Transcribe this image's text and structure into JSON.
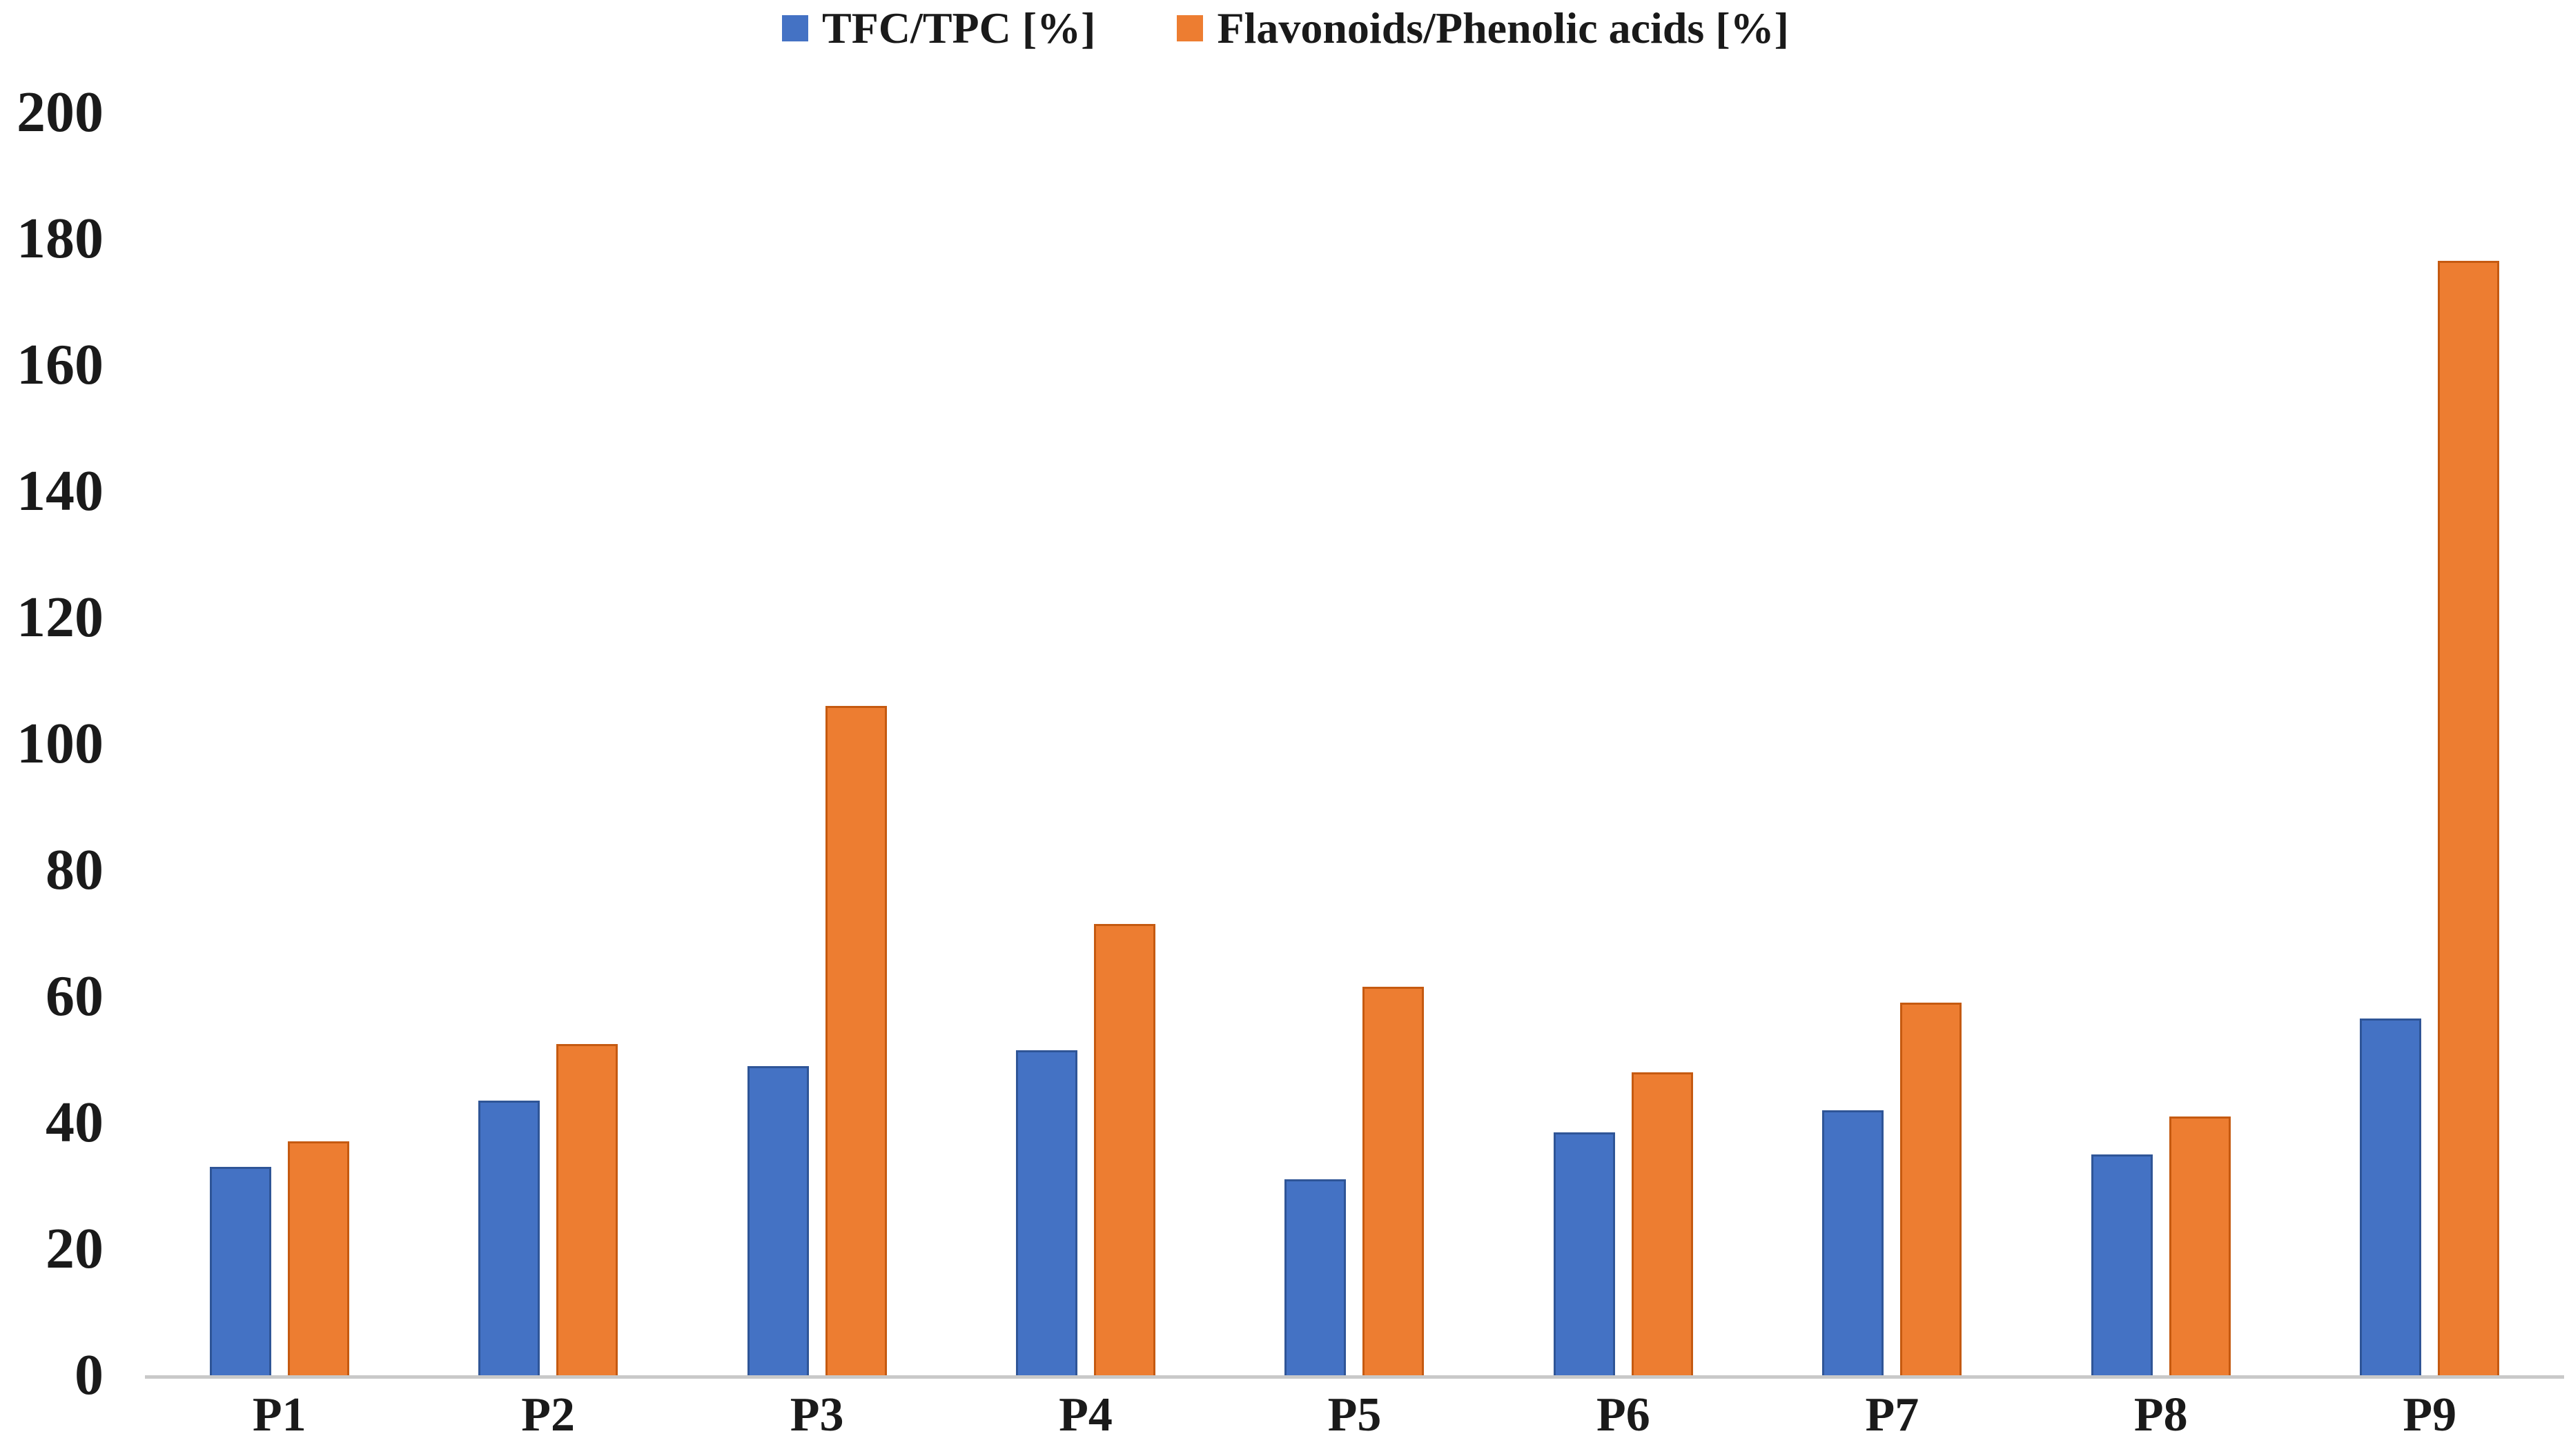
{
  "chart_data": {
    "type": "bar",
    "title": "",
    "xlabel": "",
    "ylabel": "",
    "categories": [
      "P1",
      "P2",
      "P3",
      "P4",
      "P5",
      "P6",
      "P7",
      "P8",
      "P9"
    ],
    "series": [
      {
        "name": "TFC/TPC [%]",
        "color": "#4472C4",
        "border_color": "#2F5597",
        "values": [
          33,
          43.5,
          49,
          51.5,
          31,
          38.5,
          42,
          35,
          56.5
        ]
      },
      {
        "name": "Flavonoids/Phenolic acids [%]",
        "color": "#ED7D31",
        "border_color": "#C55A11",
        "values": [
          37,
          52.5,
          106,
          71.5,
          61.5,
          48,
          59,
          41,
          176.5
        ]
      }
    ],
    "ylim": [
      0,
      200
    ],
    "yticks": [
      0,
      20,
      40,
      60,
      80,
      100,
      120,
      140,
      160,
      180,
      200
    ],
    "grid": false,
    "legend_position": "top",
    "axis_line_color": "#C9C9C9",
    "text_color": "#1A1A1A",
    "background": "#FFFFFF"
  }
}
